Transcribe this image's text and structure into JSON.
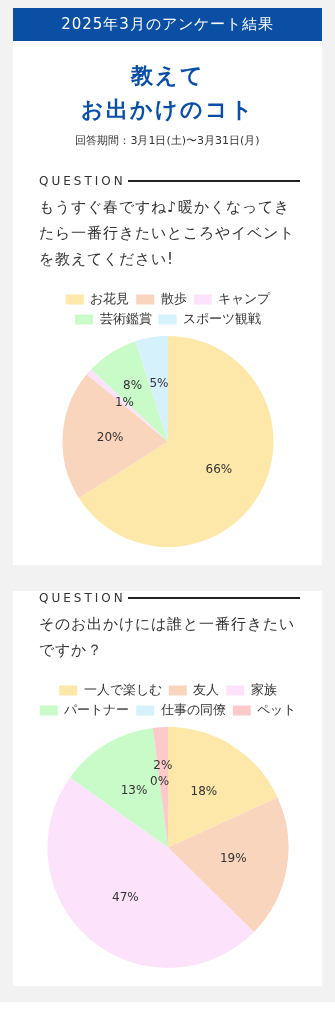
{
  "chart_data": [
    {
      "type": "pie",
      "annotations": [
        "2025年3月のアンケート結果",
        "教えて",
        "お出かけのコト",
        "回答期間：3月1日(土)〜3月31日(月)",
        "QUESTION"
      ],
      "title": "もうすぐ春ですね♪暖かくなってきたら一番行きたいところやイベントを教えてください!",
      "categories": [
        "お花見",
        "散歩",
        "キャンプ",
        "芸術鑑賞",
        "スポーツ観戦"
      ],
      "values": [
        66,
        20,
        1,
        8,
        5
      ],
      "value_labels": [
        "66%",
        "20%",
        "1%",
        "8%",
        "5%"
      ],
      "colors": [
        "#fde7a9",
        "#f9d5bd",
        "#fce3fb",
        "#c9fbc9",
        "#d4f1fc"
      ],
      "legend": "top"
    },
    {
      "type": "pie",
      "annotations": [
        "QUESTION"
      ],
      "title": "そのお出かけには誰と一番行きたいですか？",
      "categories": [
        "一人で楽しむ",
        "友人",
        "家族",
        "パートナー",
        "仕事の同僚",
        "ペット"
      ],
      "values": [
        18,
        19,
        47,
        13,
        0,
        2
      ],
      "value_labels": [
        "18%",
        "19%",
        "47%",
        "13%",
        "0%",
        "2%"
      ],
      "colors": [
        "#fde7a9",
        "#f9d5bd",
        "#fce3fb",
        "#c9fbc9",
        "#d4f1fc",
        "#fccacb"
      ],
      "legend": "top"
    }
  ]
}
